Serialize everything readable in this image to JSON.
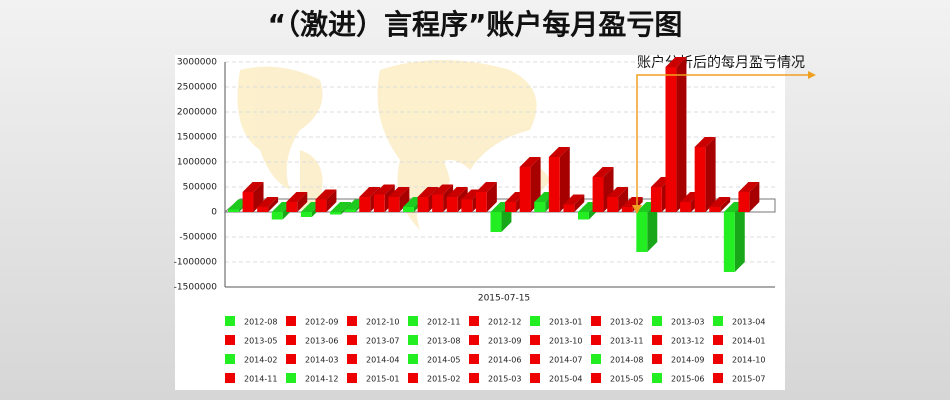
{
  "chart_data": {
    "type": "bar3d",
    "title": "“（激进）言程序”账户每月盈亏图",
    "annotation": "账户分析后的每月盈亏情况",
    "xlabel": "2015-07-15",
    "categories": [
      "2012-08",
      "2012-09",
      "2012-10",
      "2012-11",
      "2012-12",
      "2013-01",
      "2013-02",
      "2013-03",
      "2013-04",
      "2013-05",
      "2013-06",
      "2013-07",
      "2013-08",
      "2013-09",
      "2013-10",
      "2013-11",
      "2013-12",
      "2014-01",
      "2014-02",
      "2014-03",
      "2014-04",
      "2014-05",
      "2014-06",
      "2014-07",
      "2014-08",
      "2014-09",
      "2014-10",
      "2014-11",
      "2014-12",
      "2015-01",
      "2015-02",
      "2015-03",
      "2015-04",
      "2015-05",
      "2015-06",
      "2015-07"
    ],
    "values": [
      50000,
      400000,
      100000,
      -150000,
      200000,
      -100000,
      250000,
      -50000,
      50000,
      300000,
      350000,
      300000,
      100000,
      300000,
      350000,
      300000,
      250000,
      400000,
      -400000,
      200000,
      900000,
      200000,
      1100000,
      150000,
      -150000,
      700000,
      300000,
      100000,
      -800000,
      500000,
      2900000,
      200000,
      1300000,
      100000,
      -1200000,
      400000
    ],
    "colors": [
      "#22ee22",
      "#ee0000",
      "#ee0000",
      "#22ee22",
      "#ee0000",
      "#22ee22",
      "#ee0000",
      "#22ee22",
      "#22ee22",
      "#ee0000",
      "#ee0000",
      "#ee0000",
      "#22ee22",
      "#ee0000",
      "#ee0000",
      "#ee0000",
      "#ee0000",
      "#ee0000",
      "#22ee22",
      "#ee0000",
      "#ee0000",
      "#22ee22",
      "#ee0000",
      "#ee0000",
      "#22ee22",
      "#ee0000",
      "#ee0000",
      "#ee0000",
      "#22ee22",
      "#ee0000",
      "#ee0000",
      "#ee0000",
      "#ee0000",
      "#ee0000",
      "#22ee22",
      "#ee0000"
    ],
    "ylim": [
      -1500000,
      3000000
    ],
    "yticks": [
      -1500000,
      -1000000,
      -500000,
      0,
      500000,
      1000000,
      1500000,
      2000000,
      2500000,
      3000000
    ],
    "grid": true
  }
}
